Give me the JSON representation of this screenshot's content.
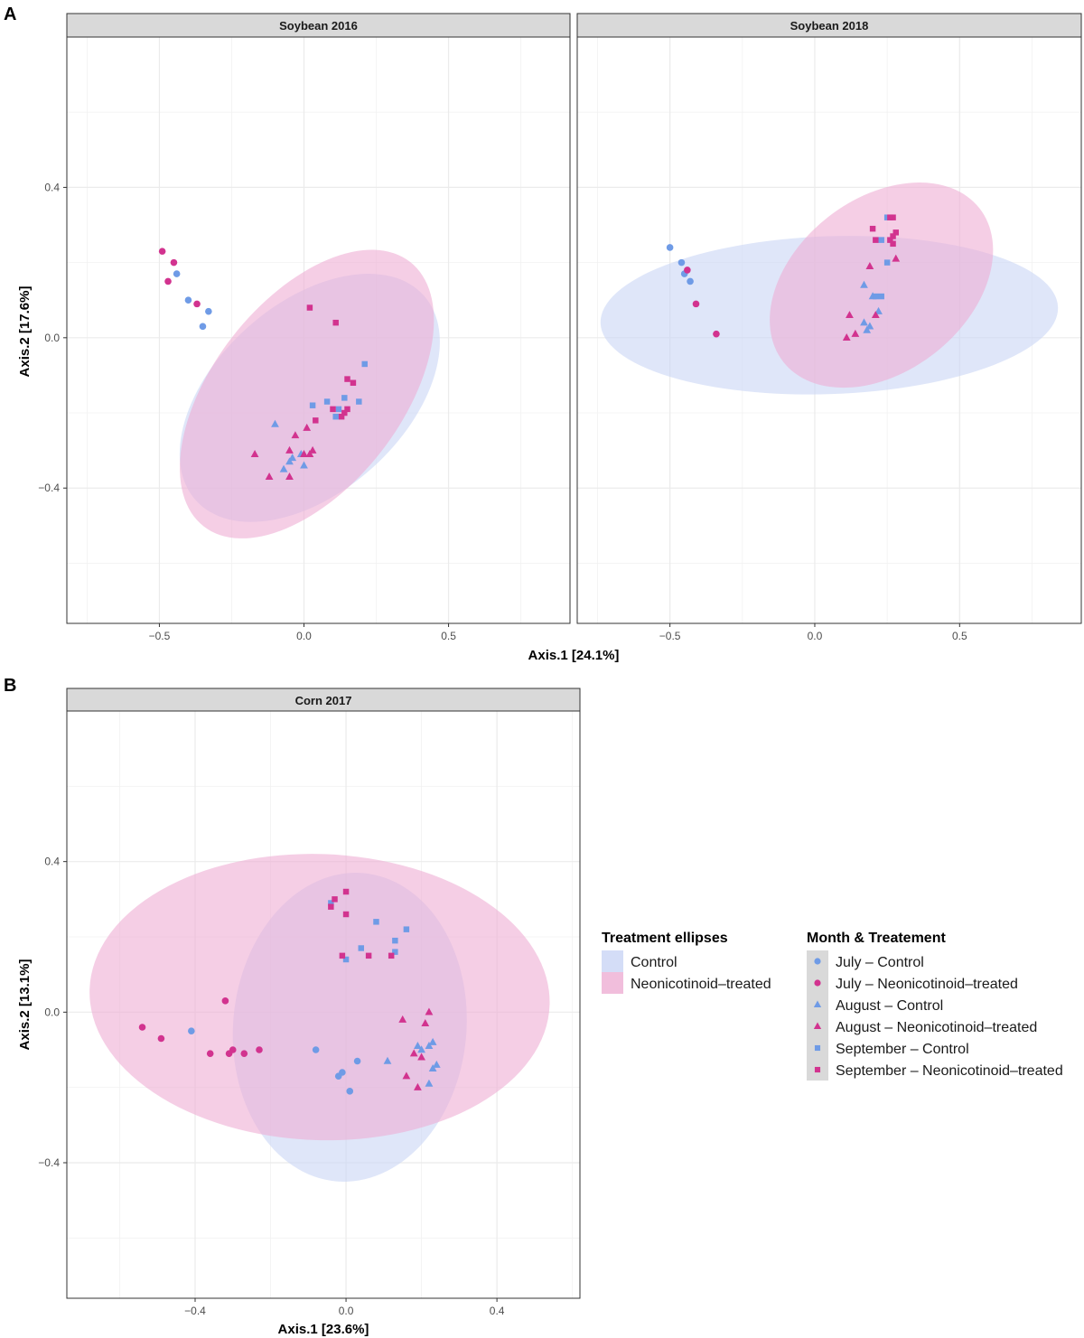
{
  "panel_labels": [
    "A",
    "B"
  ],
  "colors": {
    "control": "#6f9be6",
    "treated": "#d2338f",
    "control_fill": "#c9d5f5",
    "treated_fill": "#eeaed3",
    "strip_bg": "#d9d9d9",
    "grid": "#ebebeb"
  },
  "legend": {
    "ellipse_title": "Treatment ellipses",
    "ellipse_items": [
      "Control",
      "Neonicotinoid–treated"
    ],
    "marker_title": "Month & Treatement",
    "marker_items": [
      "July – Control",
      "July – Neonicotinoid–treated",
      "August – Control",
      "August – Neonicotinoid–treated",
      "September – Control",
      "September – Neonicotinoid–treated"
    ],
    "marker_shapes": [
      "circle",
      "circle",
      "triangle",
      "triangle",
      "square",
      "square"
    ],
    "marker_groups": [
      "control",
      "treated",
      "control",
      "treated",
      "control",
      "treated"
    ]
  },
  "chart_data": [
    {
      "type": "scatter",
      "panel": "A",
      "title": "Soybean 2016",
      "xlabel": "Axis.1   [24.1%]",
      "ylabel": "Axis.2   [17.6%]",
      "xlim": [
        -0.82,
        0.92
      ],
      "ylim": [
        -0.76,
        0.8
      ],
      "xticks": [
        -0.5,
        0.0,
        0.5
      ],
      "xtick_labels": [
        "−0.5",
        "0.0",
        "0.5"
      ],
      "yticks": [
        0.4,
        0.0,
        -0.4
      ],
      "ytick_labels": [
        "0.4",
        "0.0",
        "−0.4"
      ],
      "ellipses": [
        {
          "group": "control",
          "cx": 0.02,
          "cy": -0.16,
          "rx": 0.53,
          "ry": 0.25,
          "angle": -42
        },
        {
          "group": "treated",
          "cx": 0.01,
          "cy": -0.15,
          "rx": 0.58,
          "ry": 0.25,
          "angle": -52
        }
      ],
      "series": [
        {
          "name": "July – Control",
          "group": "control",
          "shape": "circle",
          "x": [
            -0.44,
            -0.4,
            -0.33,
            -0.35
          ],
          "y": [
            0.17,
            0.1,
            0.07,
            0.03
          ]
        },
        {
          "name": "July – Neonicotinoid–treated",
          "group": "treated",
          "shape": "circle",
          "x": [
            -0.49,
            -0.45,
            -0.47,
            -0.37
          ],
          "y": [
            0.23,
            0.2,
            0.15,
            0.09
          ]
        },
        {
          "name": "August – Control",
          "group": "control",
          "shape": "triangle",
          "x": [
            -0.1,
            -0.04,
            -0.01,
            -0.05,
            -0.07,
            0.0
          ],
          "y": [
            -0.23,
            -0.32,
            -0.31,
            -0.33,
            -0.35,
            -0.34
          ]
        },
        {
          "name": "August – Neonicotinoid–treated",
          "group": "treated",
          "shape": "triangle",
          "x": [
            -0.17,
            -0.12,
            -0.05,
            -0.03,
            0.01,
            0.03,
            0.0,
            -0.05,
            0.02
          ],
          "y": [
            -0.31,
            -0.37,
            -0.3,
            -0.26,
            -0.24,
            -0.3,
            -0.31,
            -0.37,
            -0.31
          ]
        },
        {
          "name": "September – Control",
          "group": "control",
          "shape": "square",
          "x": [
            0.03,
            0.08,
            0.12,
            0.14,
            0.21,
            0.19,
            0.11
          ],
          "y": [
            -0.18,
            -0.17,
            -0.19,
            -0.16,
            -0.07,
            -0.17,
            -0.21
          ]
        },
        {
          "name": "September – Neonicotinoid–treated",
          "group": "treated",
          "shape": "square",
          "x": [
            0.02,
            0.11,
            0.15,
            0.17,
            0.04,
            0.1,
            0.14,
            0.15,
            0.13
          ],
          "y": [
            0.08,
            0.04,
            -0.11,
            -0.12,
            -0.22,
            -0.19,
            -0.2,
            -0.19,
            -0.21
          ]
        }
      ]
    },
    {
      "type": "scatter",
      "panel": "A",
      "title": "Soybean 2018",
      "xlabel": "Axis.1   [24.1%]",
      "ylabel": "Axis.2   [17.6%]",
      "xlim": [
        -0.82,
        0.92
      ],
      "ylim": [
        -0.76,
        0.8
      ],
      "xticks": [
        -0.5,
        0.0,
        0.5
      ],
      "xtick_labels": [
        "−0.5",
        "0.0",
        "0.5"
      ],
      "yticks": [
        0.4,
        0.0,
        -0.4
      ],
      "ytick_labels": [
        "0.4",
        "0.0",
        "−0.4"
      ],
      "ellipses": [
        {
          "group": "control",
          "cx": 0.05,
          "cy": 0.06,
          "rx": 0.79,
          "ry": 0.21,
          "angle": -2
        },
        {
          "group": "treated",
          "cx": 0.23,
          "cy": 0.14,
          "rx": 0.43,
          "ry": 0.23,
          "angle": -38
        }
      ],
      "series": [
        {
          "name": "July – Control",
          "group": "control",
          "shape": "circle",
          "x": [
            -0.5,
            -0.46,
            -0.45,
            -0.43
          ],
          "y": [
            0.24,
            0.2,
            0.17,
            0.15
          ]
        },
        {
          "name": "July – Neonicotinoid–treated",
          "group": "treated",
          "shape": "circle",
          "x": [
            -0.44,
            -0.41,
            -0.34
          ],
          "y": [
            0.18,
            0.09,
            0.01
          ]
        },
        {
          "name": "August – Control",
          "group": "control",
          "shape": "triangle",
          "x": [
            0.17,
            0.2,
            0.22,
            0.17,
            0.19,
            0.18
          ],
          "y": [
            0.14,
            0.11,
            0.07,
            0.04,
            0.03,
            0.02
          ]
        },
        {
          "name": "August – Neonicotinoid–treated",
          "group": "treated",
          "shape": "triangle",
          "x": [
            0.19,
            0.28,
            0.12,
            0.21,
            0.14,
            0.11
          ],
          "y": [
            0.19,
            0.21,
            0.06,
            0.06,
            0.01,
            0.0
          ]
        },
        {
          "name": "September – Control",
          "group": "control",
          "shape": "square",
          "x": [
            0.25,
            0.23,
            0.25,
            0.23,
            0.21
          ],
          "y": [
            0.32,
            0.26,
            0.2,
            0.11,
            0.11
          ]
        },
        {
          "name": "September – Neonicotinoid–treated",
          "group": "treated",
          "shape": "square",
          "x": [
            0.27,
            0.26,
            0.2,
            0.21,
            0.28,
            0.27,
            0.26,
            0.27
          ],
          "y": [
            0.32,
            0.32,
            0.29,
            0.26,
            0.28,
            0.27,
            0.26,
            0.25
          ]
        }
      ]
    },
    {
      "type": "scatter",
      "panel": "B",
      "title": "Corn 2017",
      "xlabel": "Axis.1   [23.6%]",
      "ylabel": "Axis.2   [13.1%]",
      "xlim": [
        -0.74,
        0.62
      ],
      "ylim": [
        -0.76,
        0.8
      ],
      "xticks": [
        -0.4,
        0.0,
        0.4
      ],
      "xtick_labels": [
        "−0.4",
        "0.0",
        "0.4"
      ],
      "yticks": [
        0.4,
        0.0,
        -0.4
      ],
      "ytick_labels": [
        "0.4",
        "0.0",
        "−0.4"
      ],
      "ellipses": [
        {
          "group": "control",
          "cx": 0.01,
          "cy": -0.04,
          "rx": 0.41,
          "ry": 0.31,
          "angle": 95
        },
        {
          "group": "treated",
          "cx": -0.07,
          "cy": 0.04,
          "rx": 0.61,
          "ry": 0.38,
          "angle": 2
        }
      ],
      "series": [
        {
          "name": "July – Control",
          "group": "control",
          "shape": "circle",
          "x": [
            -0.41,
            -0.08,
            0.03,
            -0.01,
            -0.02,
            0.01
          ],
          "y": [
            -0.05,
            -0.1,
            -0.13,
            -0.16,
            -0.17,
            -0.21
          ]
        },
        {
          "name": "July – Neonicotinoid–treated",
          "group": "treated",
          "shape": "circle",
          "x": [
            -0.54,
            -0.49,
            -0.32,
            -0.36,
            -0.31,
            -0.3,
            -0.27,
            -0.23
          ],
          "y": [
            -0.04,
            -0.07,
            0.03,
            -0.11,
            -0.11,
            -0.1,
            -0.11,
            -0.1
          ]
        },
        {
          "name": "August – Control",
          "group": "control",
          "shape": "triangle",
          "x": [
            0.11,
            0.19,
            0.2,
            0.22,
            0.23,
            0.24,
            0.23,
            0.22
          ],
          "y": [
            -0.13,
            -0.09,
            -0.1,
            -0.09,
            -0.08,
            -0.14,
            -0.15,
            -0.19
          ]
        },
        {
          "name": "August – Neonicotinoid–treated",
          "group": "treated",
          "shape": "triangle",
          "x": [
            0.22,
            0.15,
            0.21,
            0.18,
            0.2,
            0.16,
            0.19
          ],
          "y": [
            0.0,
            -0.02,
            -0.03,
            -0.11,
            -0.12,
            -0.17,
            -0.2
          ]
        },
        {
          "name": "September – Control",
          "group": "control",
          "shape": "square",
          "x": [
            -0.04,
            0.08,
            0.16,
            0.13,
            0.04,
            0.13,
            0.0
          ],
          "y": [
            0.29,
            0.24,
            0.22,
            0.19,
            0.17,
            0.16,
            0.14
          ]
        },
        {
          "name": "September – Neonicotinoid–treated",
          "group": "treated",
          "shape": "square",
          "x": [
            0.0,
            -0.03,
            0.0,
            -0.04,
            -0.01,
            0.06,
            0.12
          ],
          "y": [
            0.32,
            0.3,
            0.26,
            0.28,
            0.15,
            0.15,
            0.15
          ]
        }
      ]
    }
  ]
}
